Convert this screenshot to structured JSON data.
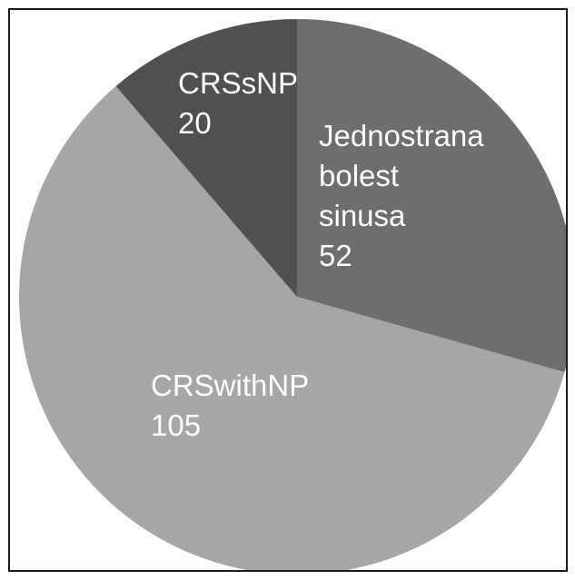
{
  "chart_data": {
    "type": "pie",
    "title": "",
    "slices": [
      {
        "label_lines": [
          "Jednostrana",
          "bolest",
          "sinusa"
        ],
        "value": 52,
        "color": "#6e6e6e"
      },
      {
        "label_lines": [
          "CRSwithNP"
        ],
        "value": 105,
        "color": "#a6a6a6"
      },
      {
        "label_lines": [
          "CRSsNP"
        ],
        "value": 20,
        "color": "#505050"
      }
    ]
  }
}
